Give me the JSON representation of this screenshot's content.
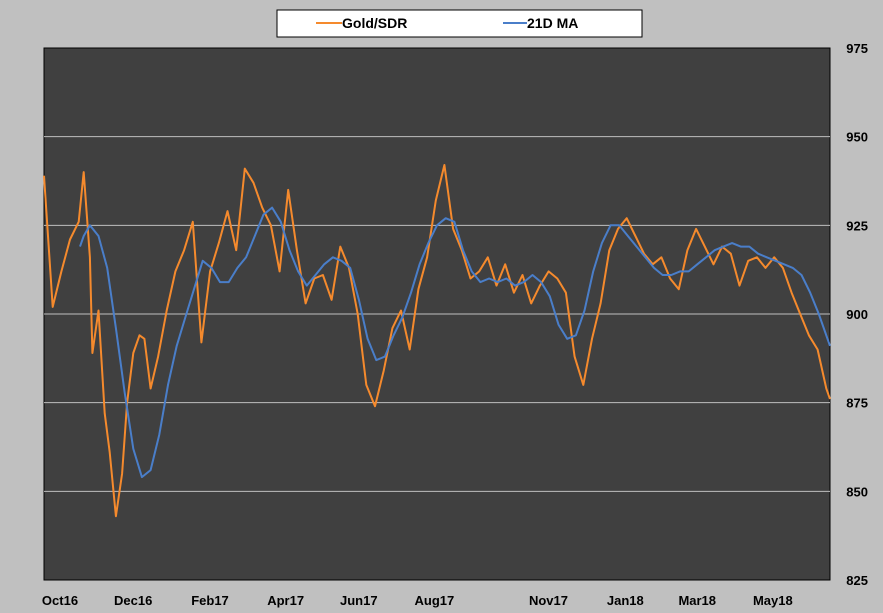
{
  "chart_data": {
    "type": "line",
    "title": "",
    "xlabel": "",
    "ylabel": "",
    "ylim": [
      825,
      975
    ],
    "yticks": [
      825,
      850,
      875,
      900,
      925,
      950,
      975
    ],
    "y_axis_side": "right",
    "grid": "horizontal",
    "plot_background": "#404040",
    "page_background": "#c0c0c0",
    "legend_position": "top-center",
    "x_range": [
      "2016-10-03",
      "2018-06-29"
    ],
    "xticks": [
      {
        "label": "Oct16",
        "date": "2016-10-03"
      },
      {
        "label": "Dec16",
        "date": "2016-12-01"
      },
      {
        "label": "Feb17",
        "date": "2017-02-01"
      },
      {
        "label": "Apr17",
        "date": "2017-04-03"
      },
      {
        "label": "Jun17",
        "date": "2017-06-01"
      },
      {
        "label": "Aug17",
        "date": "2017-08-01"
      },
      {
        "label": "Nov17",
        "date": "2017-11-01"
      },
      {
        "label": "Jan18",
        "date": "2018-01-02"
      },
      {
        "label": "Mar18",
        "date": "2018-03-01"
      },
      {
        "label": "May18",
        "date": "2018-05-01"
      }
    ],
    "series": [
      {
        "name": "Gold/SDR",
        "color": "#f58a2d",
        "x": [
          "2016-10-03",
          "2016-10-10",
          "2016-10-17",
          "2016-10-24",
          "2016-10-31",
          "2016-11-04",
          "2016-11-09",
          "2016-11-11",
          "2016-11-16",
          "2016-11-21",
          "2016-11-25",
          "2016-11-30",
          "2016-12-05",
          "2016-12-09",
          "2016-12-14",
          "2016-12-19",
          "2016-12-23",
          "2016-12-28",
          "2017-01-03",
          "2017-01-10",
          "2017-01-17",
          "2017-01-24",
          "2017-01-31",
          "2017-02-07",
          "2017-02-14",
          "2017-02-21",
          "2017-02-28",
          "2017-03-07",
          "2017-03-14",
          "2017-03-21",
          "2017-03-28",
          "2017-04-04",
          "2017-04-11",
          "2017-04-18",
          "2017-04-25",
          "2017-05-02",
          "2017-05-09",
          "2017-05-16",
          "2017-05-23",
          "2017-05-30",
          "2017-06-06",
          "2017-06-13",
          "2017-06-20",
          "2017-06-27",
          "2017-07-04",
          "2017-07-11",
          "2017-07-18",
          "2017-07-25",
          "2017-08-01",
          "2017-08-08",
          "2017-08-15",
          "2017-08-22",
          "2017-08-29",
          "2017-09-05",
          "2017-09-12",
          "2017-09-19",
          "2017-09-26",
          "2017-10-03",
          "2017-10-10",
          "2017-10-17",
          "2017-10-24",
          "2017-10-31",
          "2017-11-07",
          "2017-11-14",
          "2017-11-21",
          "2017-11-28",
          "2017-12-05",
          "2017-12-12",
          "2017-12-19",
          "2017-12-26",
          "2018-01-02",
          "2018-01-09",
          "2018-01-16",
          "2018-01-23",
          "2018-01-30",
          "2018-02-06",
          "2018-02-13",
          "2018-02-20",
          "2018-02-27",
          "2018-03-06",
          "2018-03-13",
          "2018-03-20",
          "2018-03-27",
          "2018-04-03",
          "2018-04-10",
          "2018-04-17",
          "2018-04-24",
          "2018-05-01",
          "2018-05-08",
          "2018-05-15",
          "2018-05-22",
          "2018-05-29",
          "2018-06-05",
          "2018-06-12",
          "2018-06-19",
          "2018-06-26",
          "2018-06-29"
        ],
        "values": [
          939,
          902,
          912,
          921,
          926,
          940,
          916,
          889,
          901,
          872,
          861,
          843,
          855,
          875,
          889,
          894,
          893,
          879,
          888,
          901,
          912,
          918,
          926,
          892,
          912,
          920,
          929,
          918,
          941,
          937,
          930,
          925,
          912,
          935,
          918,
          903,
          910,
          911,
          904,
          919,
          913,
          900,
          880,
          874,
          884,
          896,
          901,
          890,
          907,
          916,
          932,
          942,
          924,
          918,
          910,
          912,
          916,
          908,
          914,
          906,
          911,
          903,
          908,
          912,
          910,
          906,
          888,
          880,
          893,
          903,
          918,
          924,
          927,
          922,
          917,
          914,
          916,
          910,
          907,
          918,
          924,
          919,
          914,
          919,
          917,
          908,
          915,
          916,
          913,
          916,
          913,
          906,
          900,
          894,
          890,
          879,
          876
        ]
      },
      {
        "name": "21D MA",
        "color": "#4a7ec9",
        "x": [
          "2016-11-01",
          "2016-11-04",
          "2016-11-09",
          "2016-11-16",
          "2016-11-23",
          "2016-11-30",
          "2016-12-07",
          "2016-12-14",
          "2016-12-21",
          "2016-12-28",
          "2017-01-04",
          "2017-01-11",
          "2017-01-18",
          "2017-01-25",
          "2017-02-01",
          "2017-02-08",
          "2017-02-15",
          "2017-02-22",
          "2017-03-01",
          "2017-03-08",
          "2017-03-15",
          "2017-03-22",
          "2017-03-29",
          "2017-04-05",
          "2017-04-12",
          "2017-04-19",
          "2017-04-26",
          "2017-05-03",
          "2017-05-10",
          "2017-05-17",
          "2017-05-24",
          "2017-05-31",
          "2017-06-07",
          "2017-06-14",
          "2017-06-21",
          "2017-06-28",
          "2017-07-05",
          "2017-07-12",
          "2017-07-19",
          "2017-07-26",
          "2017-08-02",
          "2017-08-09",
          "2017-08-16",
          "2017-08-23",
          "2017-08-30",
          "2017-09-06",
          "2017-09-13",
          "2017-09-20",
          "2017-09-27",
          "2017-10-04",
          "2017-10-11",
          "2017-10-18",
          "2017-10-25",
          "2017-11-01",
          "2017-11-08",
          "2017-11-15",
          "2017-11-22",
          "2017-11-29",
          "2017-12-06",
          "2017-12-13",
          "2017-12-20",
          "2017-12-27",
          "2018-01-03",
          "2018-01-10",
          "2018-01-17",
          "2018-01-24",
          "2018-01-31",
          "2018-02-07",
          "2018-02-14",
          "2018-02-21",
          "2018-02-28",
          "2018-03-07",
          "2018-03-14",
          "2018-03-21",
          "2018-03-28",
          "2018-04-04",
          "2018-04-11",
          "2018-04-18",
          "2018-04-25",
          "2018-05-02",
          "2018-05-09",
          "2018-05-16",
          "2018-05-23",
          "2018-05-30",
          "2018-06-06",
          "2018-06-13",
          "2018-06-20",
          "2018-06-29"
        ],
        "values": [
          919,
          922,
          925,
          922,
          913,
          896,
          878,
          862,
          854,
          856,
          866,
          880,
          891,
          899,
          907,
          915,
          913,
          909,
          909,
          913,
          916,
          922,
          928,
          930,
          926,
          918,
          912,
          908,
          911,
          914,
          916,
          915,
          913,
          904,
          893,
          887,
          888,
          894,
          899,
          906,
          914,
          920,
          925,
          927,
          926,
          918,
          912,
          909,
          910,
          909,
          910,
          908,
          909,
          911,
          909,
          905,
          897,
          893,
          894,
          901,
          912,
          920,
          925,
          925,
          922,
          919,
          916,
          913,
          911,
          911,
          912,
          912,
          914,
          916,
          918,
          919,
          920,
          919,
          919,
          917,
          916,
          915,
          914,
          913,
          911,
          906,
          900,
          891
        ]
      }
    ]
  }
}
